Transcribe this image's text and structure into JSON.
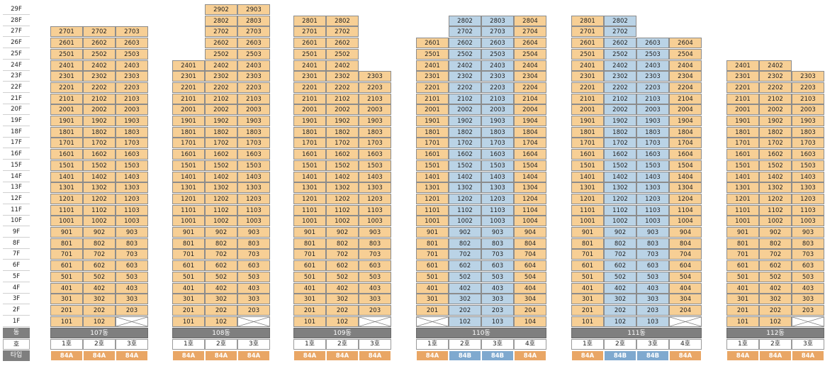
{
  "labels": {
    "dong": "동",
    "ho": "호",
    "type": "타입"
  },
  "colors": {
    "orange": "#f7cf95",
    "blue": "#bad3e6",
    "type_orange": "#e9a665",
    "type_blue": "#7fa9cf",
    "bar": "#7f7f7f"
  },
  "floors": [
    "29F",
    "28F",
    "27F",
    "26F",
    "25F",
    "24F",
    "23F",
    "22F",
    "21F",
    "20F",
    "19F",
    "18F",
    "17F",
    "16F",
    "15F",
    "14F",
    "13F",
    "12F",
    "11F",
    "10F",
    "9F",
    "8F",
    "7F",
    "6F",
    "5F",
    "4F",
    "3F",
    "2F",
    "1F"
  ],
  "buildings": [
    {
      "name": "107동",
      "columns": [
        {
          "line": 1,
          "ho": "1호",
          "type": "84A",
          "color": "orange",
          "min_floor": 1,
          "max_floor": 27
        },
        {
          "line": 2,
          "ho": "2호",
          "type": "84A",
          "color": "orange",
          "min_floor": 1,
          "max_floor": 27
        },
        {
          "line": 3,
          "ho": "3호",
          "type": "84A",
          "color": "orange",
          "min_floor": 2,
          "max_floor": 27,
          "empty_floors": [
            1
          ]
        }
      ]
    },
    {
      "name": "108동",
      "columns": [
        {
          "line": 1,
          "ho": "1호",
          "type": "84A",
          "color": "orange",
          "min_floor": 1,
          "max_floor": 24
        },
        {
          "line": 2,
          "ho": "2호",
          "type": "84A",
          "color": "orange",
          "min_floor": 1,
          "max_floor": 29
        },
        {
          "line": 3,
          "ho": "3호",
          "type": "84A",
          "color": "orange",
          "min_floor": 2,
          "max_floor": 29,
          "empty_floors": [
            1
          ]
        }
      ]
    },
    {
      "name": "109동",
      "columns": [
        {
          "line": 1,
          "ho": "1호",
          "type": "84A",
          "color": "orange",
          "min_floor": 1,
          "max_floor": 28
        },
        {
          "line": 2,
          "ho": "2호",
          "type": "84A",
          "color": "orange",
          "min_floor": 1,
          "max_floor": 28
        },
        {
          "line": 3,
          "ho": "3호",
          "type": "84A",
          "color": "orange",
          "min_floor": 2,
          "max_floor": 23,
          "empty_floors": [
            1
          ]
        }
      ]
    },
    {
      "name": "110동",
      "columns": [
        {
          "line": 1,
          "ho": "1호",
          "type": "84A",
          "color": "orange",
          "min_floor": 2,
          "max_floor": 26,
          "empty_floors": [
            1
          ]
        },
        {
          "line": 2,
          "ho": "2호",
          "type": "84B",
          "color": "blue",
          "min_floor": 1,
          "max_floor": 28
        },
        {
          "line": 3,
          "ho": "3호",
          "type": "84B",
          "color": "blue",
          "min_floor": 1,
          "max_floor": 28
        },
        {
          "line": 4,
          "ho": "4호",
          "type": "84A",
          "color": "orange",
          "min_floor": 1,
          "max_floor": 28
        }
      ]
    },
    {
      "name": "111동",
      "columns": [
        {
          "line": 1,
          "ho": "1호",
          "type": "84A",
          "color": "orange",
          "min_floor": 1,
          "max_floor": 28
        },
        {
          "line": 2,
          "ho": "2호",
          "type": "84B",
          "color": "blue",
          "min_floor": 1,
          "max_floor": 28
        },
        {
          "line": 3,
          "ho": "3호",
          "type": "84B",
          "color": "blue",
          "min_floor": 1,
          "max_floor": 26
        },
        {
          "line": 4,
          "ho": "4호",
          "type": "84A",
          "color": "orange",
          "min_floor": 2,
          "max_floor": 26,
          "empty_floors": [
            1
          ]
        }
      ]
    },
    {
      "name": "112동",
      "columns": [
        {
          "line": 1,
          "ho": "1호",
          "type": "84A",
          "color": "orange",
          "min_floor": 1,
          "max_floor": 24
        },
        {
          "line": 2,
          "ho": "2호",
          "type": "84A",
          "color": "orange",
          "min_floor": 1,
          "max_floor": 24
        },
        {
          "line": 3,
          "ho": "3호",
          "type": "84A",
          "color": "orange",
          "min_floor": 2,
          "max_floor": 23,
          "empty_floors": [
            1
          ]
        }
      ]
    }
  ]
}
